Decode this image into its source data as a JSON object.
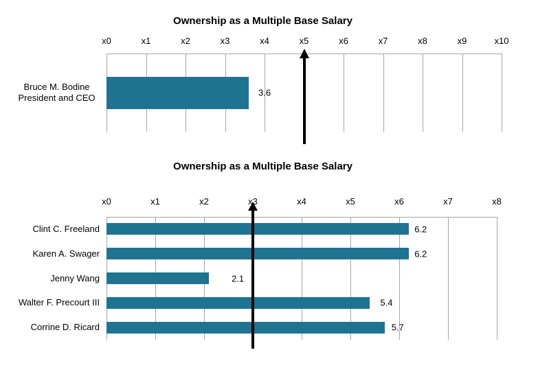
{
  "page_background": "#ffffff",
  "chart_data": [
    {
      "type": "bar",
      "orientation": "horizontal",
      "title": "Ownership as a Multiple Base Salary",
      "categories": [
        [
          "Bruce M. Bodine",
          "President and CEO"
        ]
      ],
      "values": [
        3.6
      ],
      "data_labels": [
        "3.6"
      ],
      "xlim": [
        0,
        10
      ],
      "tick_labels": [
        "x0",
        "x1",
        "x2",
        "x3",
        "x4",
        "x5",
        "x6",
        "x7",
        "x8",
        "x9",
        "x10"
      ],
      "reference_line": {
        "value": 5,
        "style": "vertical-black-arrow-up"
      },
      "bar_color": "#1E7391",
      "gridline_color": "#A6A6A6",
      "arrow_color": "#000000",
      "grid": true,
      "legend": "none",
      "label_offsets": [
        14
      ]
    },
    {
      "type": "bar",
      "orientation": "horizontal",
      "title": "Ownership as a Multiple Base Salary",
      "categories": [
        [
          "Clint C. Freeland"
        ],
        [
          "Karen A. Swager"
        ],
        [
          "Jenny Wang"
        ],
        [
          "Walter F. Precourt III"
        ],
        [
          "Corrine D. Ricard"
        ]
      ],
      "values": [
        6.2,
        6.2,
        2.1,
        5.4,
        5.7
      ],
      "data_labels": [
        "6.2",
        "6.2",
        "2.1",
        "5.4",
        "5.7"
      ],
      "xlim": [
        0,
        8
      ],
      "tick_labels": [
        "x0",
        "x1",
        "x2",
        "x3",
        "x4",
        "x5",
        "x6",
        "x7",
        "x8"
      ],
      "reference_line": {
        "value": 3,
        "style": "vertical-black-arrow-up"
      },
      "bar_color": "#1E7391",
      "gridline_color": "#A6A6A6",
      "arrow_color": "#000000",
      "grid": true,
      "legend": "none",
      "label_offsets": [
        8,
        8,
        33,
        15,
        10
      ]
    }
  ]
}
